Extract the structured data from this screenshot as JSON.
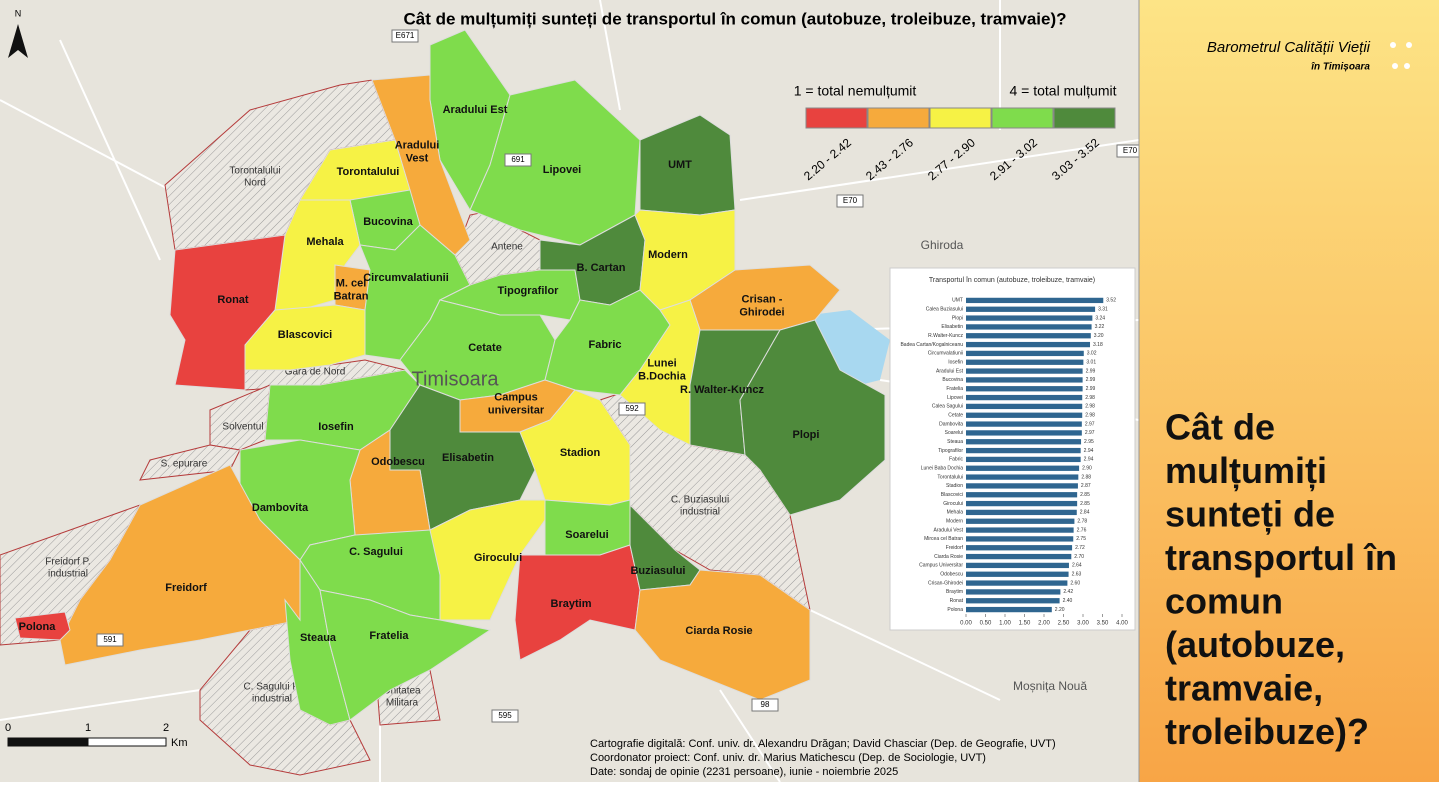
{
  "map": {
    "title": "Cât de mulțumiți sunteți de transportul în comun (autobuze, troleibuze, tramvaie)?",
    "legend": {
      "low": "1 = total nemulțumit",
      "high": "4 = total mulțumit",
      "classes": [
        {
          "label": "2.20 - 2.42",
          "color": "#e8423f"
        },
        {
          "label": "2.43 - 2.76",
          "color": "#f6aa3c"
        },
        {
          "label": "2.77 - 2.90",
          "color": "#f6f245"
        },
        {
          "label": "2.91 - 3.02",
          "color": "#7fdc4c"
        },
        {
          "label": "3.03 - 3.52",
          "color": "#4f8a3c"
        }
      ]
    },
    "regions": [
      {
        "lines": [
          "Aradului Est"
        ]
      },
      {
        "lines": [
          "Lipovei"
        ]
      },
      {
        "lines": [
          "UMT"
        ]
      },
      {
        "lines": [
          "Aradului",
          "Vest"
        ]
      },
      {
        "lines": [
          "Torontalului"
        ]
      },
      {
        "lines": [
          "Bucovina"
        ]
      },
      {
        "lines": [
          "Mehala"
        ]
      },
      {
        "lines": [
          "Ronat"
        ]
      },
      {
        "lines": [
          "M. cel",
          "Batran"
        ]
      },
      {
        "lines": [
          "Circumvalatiunii"
        ]
      },
      {
        "lines": [
          "Blascovici"
        ]
      },
      {
        "lines": [
          "Tipografilor"
        ]
      },
      {
        "lines": [
          "B. Cartan"
        ]
      },
      {
        "lines": [
          "Modern"
        ]
      },
      {
        "lines": [
          "Crisan -",
          "Ghirodei"
        ]
      },
      {
        "lines": [
          "Cetate"
        ]
      },
      {
        "lines": [
          "Fabric"
        ]
      },
      {
        "lines": [
          "Lunei",
          "B.Dochia"
        ]
      },
      {
        "lines": [
          "R. Walter-Kuncz"
        ]
      },
      {
        "lines": [
          "Plopi"
        ]
      },
      {
        "lines": [
          "Campus",
          "universitar"
        ]
      },
      {
        "lines": [
          "Iosefin"
        ]
      },
      {
        "lines": [
          "Elisabetin"
        ]
      },
      {
        "lines": [
          "Stadion"
        ]
      },
      {
        "lines": [
          "Odobescu"
        ]
      },
      {
        "lines": [
          "Dambovita"
        ]
      },
      {
        "lines": [
          "Freidorf"
        ]
      },
      {
        "lines": [
          "Polona"
        ]
      },
      {
        "lines": [
          "C. Sagului"
        ]
      },
      {
        "lines": [
          "Girocului"
        ]
      },
      {
        "lines": [
          "Soarelui"
        ]
      },
      {
        "lines": [
          "Braytim"
        ]
      },
      {
        "lines": [
          "Buziasului"
        ]
      },
      {
        "lines": [
          "Ciarda Rosie"
        ]
      },
      {
        "lines": [
          "Steaua"
        ]
      },
      {
        "lines": [
          "Fratelia"
        ]
      }
    ],
    "other_areas": [
      {
        "lines": [
          "Torontalului",
          "Nord"
        ]
      },
      {
        "lines": [
          "Antene"
        ]
      },
      {
        "lines": [
          "Gara de Nord"
        ]
      },
      {
        "lines": [
          "Solventul"
        ]
      },
      {
        "lines": [
          "S. epurare"
        ]
      },
      {
        "lines": [
          "Freidorf P.",
          "industrial"
        ]
      },
      {
        "lines": [
          "C. Buziasului",
          "industrial"
        ]
      },
      {
        "lines": [
          "C. Sagului P.",
          "industrial"
        ]
      },
      {
        "lines": [
          "Unitatea",
          "Militara"
        ]
      }
    ],
    "places": [
      "Timisoara",
      "Ghiroda",
      "Moșnița Nouă"
    ],
    "roads": [
      "E671",
      "E70",
      "E70",
      "691",
      "591",
      "595",
      "98",
      "592"
    ],
    "north": "N",
    "scale": [
      "0",
      "1",
      "2",
      "Km"
    ],
    "credits": [
      "Cartografie digitală: Conf. univ. dr. Alexandru Drăgan; David Chasciar (Dep. de Geografie, UVT)",
      "Coordonator proiect: Conf. univ. dr. Marius Matichescu (Dep. de Sociologie, UVT)",
      "Date: sondaj de opinie (2231 persoane), iunie - noiembrie 2025"
    ]
  },
  "chart_data": {
    "type": "bar",
    "title": "Transportul în comun (autobuze, troleibuze, tramvaie)",
    "color": "#2f6690",
    "categories": [
      "UMT",
      "Calea Buziasului",
      "Plopi",
      "Elisabetin",
      "R.Walter-Kuncz",
      "Badea Cartan/Kogalniceanu",
      "Circumvalatiunii",
      "Iosefin",
      "Aradului Est",
      "Bucovina",
      "Fratelia",
      "Lipovei",
      "Calea Sagului",
      "Cetate",
      "Dambovita",
      "Soarelui",
      "Steaua",
      "Tipografilor",
      "Fabric",
      "Lunei Baba Dochia",
      "Torontalului",
      "Stadion",
      "Blascovici",
      "Girocului",
      "Mehala",
      "Modern",
      "Aradului Vest",
      "Mircea cel Batran",
      "Freidorf",
      "Ciarda Rosie",
      "Campus Universitar",
      "Odobescu",
      "Crisan-Ghirodei",
      "Braytim",
      "Ronat",
      "Polona"
    ],
    "values": [
      3.52,
      3.31,
      3.24,
      3.22,
      3.2,
      3.18,
      3.02,
      3.01,
      2.99,
      2.99,
      2.99,
      2.98,
      2.98,
      2.98,
      2.97,
      2.97,
      2.95,
      2.94,
      2.94,
      2.9,
      2.88,
      2.87,
      2.85,
      2.85,
      2.84,
      2.78,
      2.76,
      2.75,
      2.72,
      2.7,
      2.64,
      2.63,
      2.6,
      2.42,
      2.4,
      2.2
    ],
    "value_labels": [
      "3.52",
      "3.31",
      "3.24",
      "3.22",
      "3.20",
      "3.18",
      "3.02",
      "3.01",
      "2.99",
      "2.99",
      "2.99",
      "2.98",
      "2.98",
      "2.98",
      "2.97",
      "2.97",
      "2.95",
      "2.94",
      "2.94",
      "2.90",
      "2.88",
      "2.87",
      "2.85",
      "2.85",
      "2.84",
      "2.78",
      "2.76",
      "2.75",
      "2.72",
      "2.70",
      "2.64",
      "2.63",
      "2.60",
      "2.42",
      "2.40",
      "2.20"
    ],
    "xlim": [
      0,
      4
    ],
    "xticks": [
      {
        "value": 0,
        "label": "0.00"
      },
      {
        "value": 0.5,
        "label": "0.50"
      },
      {
        "value": 1,
        "label": "1.00"
      },
      {
        "value": 1.5,
        "label": "1.50"
      },
      {
        "value": 2,
        "label": "2.00"
      },
      {
        "value": 2.5,
        "label": "2.50"
      },
      {
        "value": 3,
        "label": "3.00"
      },
      {
        "value": 3.5,
        "label": "3.50"
      },
      {
        "value": 4,
        "label": "4.00"
      }
    ]
  },
  "sidebar": {
    "brand": "Barometrul Calității Vieții",
    "city": "în Timișoara",
    "question": [
      "Cât de",
      "mulțumiți",
      "sunteți de",
      "transportul în",
      "comun",
      "(autobuze,",
      "tramvaie,",
      "troleibuze)?"
    ]
  }
}
